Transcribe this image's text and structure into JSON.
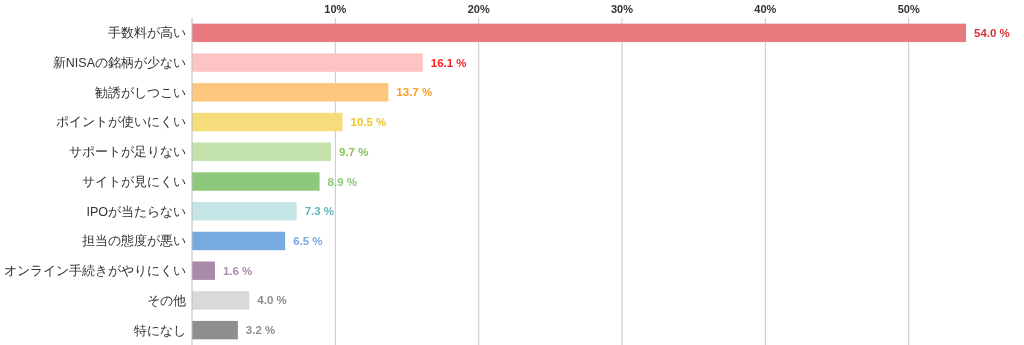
{
  "chart_data": {
    "type": "bar",
    "orientation": "horizontal",
    "categories": [
      "手数料が高い",
      "新NISAの銘柄が少ない",
      "勧誘がしつこい",
      "ポイントが使いにくい",
      "サポートが足りない",
      "サイトが見にくい",
      "IPOが当たらない",
      "担当の態度が悪い",
      "オンライン手続きがやりにくい",
      "その他",
      "特になし"
    ],
    "values": [
      54.0,
      16.1,
      13.7,
      10.5,
      9.7,
      8.9,
      7.3,
      6.5,
      1.6,
      4.0,
      3.2
    ],
    "value_labels": [
      "54.0 %",
      "16.1 %",
      "13.7 %",
      "10.5 %",
      "9.7 %",
      "8.9 %",
      "7.3 %",
      "6.5 %",
      "1.6 %",
      "4.0 %",
      "3.2 %"
    ],
    "colors": [
      "#e97a80",
      "#fec4c4",
      "#fdc77e",
      "#f7dc7b",
      "#c4e2ab",
      "#8cc97a",
      "#c5e4e5",
      "#77aae0",
      "#a98aa8",
      "#d9d9d9",
      "#8e8e8e"
    ],
    "xlim": [
      0,
      54
    ],
    "xticks": [
      {
        "value": 10,
        "label": "10%"
      },
      {
        "value": 20,
        "label": "20%"
      },
      {
        "value": 30,
        "label": "30%"
      },
      {
        "value": 40,
        "label": "40%"
      },
      {
        "value": 50,
        "label": "50%"
      }
    ],
    "grid": "x"
  }
}
